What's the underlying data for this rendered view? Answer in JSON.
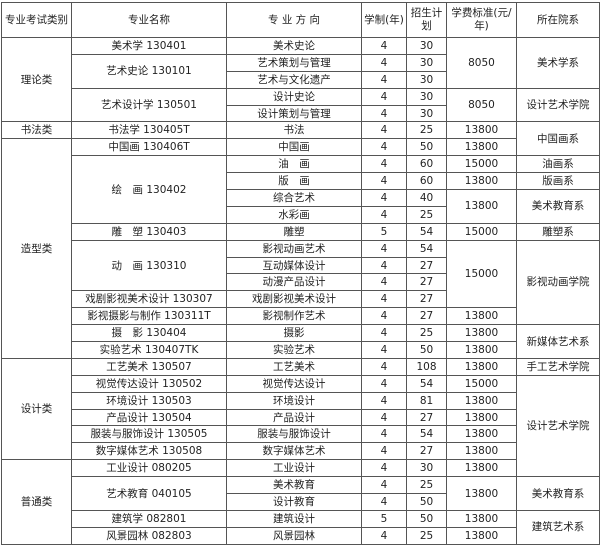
{
  "headers": {
    "category": "专业考试类别",
    "major": "专业名称",
    "direction": "专 业 方 向",
    "years": "学制(年)",
    "plan": "招生计划",
    "fee": "学费标准(元/年)",
    "dept": "所在院系"
  },
  "rows": [
    {
      "category": "理论类",
      "major": "美术学 130401",
      "direction": "美术史论",
      "years": "4",
      "plan": "30",
      "fee": "8050",
      "dept": "美术学系"
    },
    {
      "major": "艺术史论 130101",
      "direction": "艺术策划与管理",
      "years": "4",
      "plan": "30"
    },
    {
      "direction": "艺术与文化遗产",
      "years": "4",
      "plan": "30"
    },
    {
      "major": "艺术设计学 130501",
      "direction": "设计史论",
      "years": "4",
      "plan": "30",
      "fee": "8050",
      "dept": "设计艺术学院"
    },
    {
      "direction": "设计策划与管理",
      "years": "4",
      "plan": "30"
    },
    {
      "category": "书法类",
      "major": "书法学 130405T",
      "direction": "书法",
      "years": "4",
      "plan": "25",
      "fee": "13800",
      "dept": "中国画系"
    },
    {
      "category": "造型类",
      "major": "中国画 130406T",
      "direction": "中国画",
      "years": "4",
      "plan": "50",
      "fee": "13800"
    },
    {
      "major": "绘　画 130402",
      "direction": "油　画",
      "years": "4",
      "plan": "60",
      "fee": "15000",
      "dept": "油画系"
    },
    {
      "direction": "版　画",
      "years": "4",
      "plan": "60",
      "fee": "13800",
      "dept": "版画系"
    },
    {
      "direction": "综合艺术",
      "years": "4",
      "plan": "40",
      "fee": "13800",
      "dept": "美术教育系"
    },
    {
      "direction": "水彩画",
      "years": "4",
      "plan": "25"
    },
    {
      "major": "雕　塑 130403",
      "direction": "雕塑",
      "years": "5",
      "plan": "54",
      "fee": "15000",
      "dept": "雕塑系"
    },
    {
      "major": "动　画 130310",
      "direction": "影视动画艺术",
      "years": "4",
      "plan": "54",
      "fee": "15000",
      "dept": "影视动画学院"
    },
    {
      "direction": "互动媒体设计",
      "years": "4",
      "plan": "27"
    },
    {
      "direction": "动漫产品设计",
      "years": "4",
      "plan": "27"
    },
    {
      "major": "戏剧影视美术设计 130307",
      "direction": "戏剧影视美术设计",
      "years": "4",
      "plan": "27"
    },
    {
      "major": "影视摄影与制作 130311T",
      "direction": "影视制作艺术",
      "years": "4",
      "plan": "27",
      "fee": "13800"
    },
    {
      "major": "摄　影 130404",
      "direction": "摄影",
      "years": "4",
      "plan": "25",
      "fee": "13800",
      "dept": "新媒体艺术系"
    },
    {
      "major": "实验艺术 130407TK",
      "direction": "实验艺术",
      "years": "4",
      "plan": "50",
      "fee": "13800"
    },
    {
      "category": "设计类",
      "major": "工艺美术 130507",
      "direction": "工艺美术",
      "years": "4",
      "plan": "108",
      "fee": "13800",
      "dept": "手工艺术学院"
    },
    {
      "major": "视觉传达设计 130502",
      "direction": "视觉传达设计",
      "years": "4",
      "plan": "54",
      "fee": "15000",
      "dept": "设计艺术学院"
    },
    {
      "major": "环境设计 130503",
      "direction": "环境设计",
      "years": "4",
      "plan": "81",
      "fee": "13800"
    },
    {
      "major": "产品设计 130504",
      "direction": "产品设计",
      "years": "4",
      "plan": "27",
      "fee": "13800"
    },
    {
      "major": "服装与服饰设计 130505",
      "direction": "服装与服饰设计",
      "years": "4",
      "plan": "54",
      "fee": "13800"
    },
    {
      "major": "数字媒体艺术 130508",
      "direction": "数字媒体艺术",
      "years": "4",
      "plan": "27",
      "fee": "13800"
    },
    {
      "category": "普通类",
      "major": "工业设计 080205",
      "direction": "工业设计",
      "years": "4",
      "plan": "30",
      "fee": "13800"
    },
    {
      "major": "艺术教育 040105",
      "direction": "美术教育",
      "years": "4",
      "plan": "25",
      "fee": "13800",
      "dept": "美术教育系"
    },
    {
      "direction": "设计教育",
      "years": "4",
      "plan": "50"
    },
    {
      "major": "建筑学 082801",
      "direction": "建筑设计",
      "years": "5",
      "plan": "50",
      "fee": "13800",
      "dept": "建筑艺术系"
    },
    {
      "major": "风景园林 082803",
      "direction": "风景园林",
      "years": "4",
      "plan": "25",
      "fee": "13800"
    }
  ]
}
